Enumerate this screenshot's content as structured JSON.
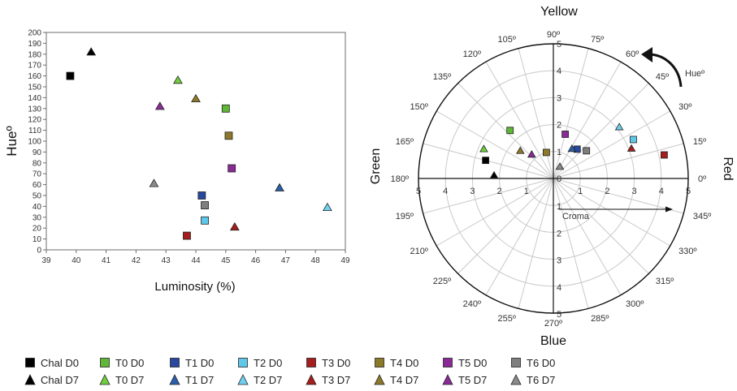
{
  "figure": {
    "scatter": {
      "type": "scatter",
      "xlabel": "Luminosity (%)",
      "ylabel": "Hueº",
      "xlim": [
        39,
        49
      ],
      "ylim": [
        0,
        200
      ],
      "x_ticks": [
        39,
        40,
        41,
        42,
        43,
        44,
        45,
        46,
        47,
        48,
        49
      ],
      "y_ticks": [
        0,
        10,
        20,
        30,
        40,
        50,
        60,
        70,
        80,
        90,
        100,
        110,
        120,
        130,
        140,
        150,
        160,
        170,
        180,
        190,
        200
      ]
    },
    "polar": {
      "type": "polar-scatter",
      "radius_max": 5,
      "radial_ticks": [
        1,
        2,
        3,
        4,
        5
      ],
      "angle_ticks": [
        "0º",
        "15º",
        "30º",
        "45º",
        "60º",
        "75º",
        "90º",
        "105º",
        "120º",
        "135º",
        "150º",
        "165º",
        "180º",
        "195º",
        "210º",
        "225º",
        "240º",
        "255º",
        "270º",
        "285º",
        "300º",
        "315º",
        "330º",
        "345º"
      ],
      "radial_label": "Croma",
      "rotation_label": "Hueº",
      "directions": {
        "top": "Yellow",
        "bottom": "Blue",
        "left": "Green",
        "right": "Red"
      }
    }
  },
  "chart_data": [
    {
      "type": "scatter",
      "title": "",
      "xlabel": "Luminosity (%)",
      "ylabel": "Hueº",
      "xlim": [
        39,
        49
      ],
      "ylim": [
        0,
        200
      ],
      "series": [
        {
          "name": "Chal D0",
          "marker": "square",
          "color": "#000000",
          "points": [
            {
              "x": 39.8,
              "y": 160
            }
          ]
        },
        {
          "name": "Chal D7",
          "marker": "triangle",
          "color": "#000000",
          "points": [
            {
              "x": 40.5,
              "y": 182
            }
          ]
        },
        {
          "name": "T0 D0",
          "marker": "square",
          "color": "#5fb637",
          "points": [
            {
              "x": 45.0,
              "y": 130
            }
          ]
        },
        {
          "name": "T0 D7",
          "marker": "triangle",
          "color": "#6fcf3d",
          "points": [
            {
              "x": 43.4,
              "y": 156
            }
          ]
        },
        {
          "name": "T1 D0",
          "marker": "square",
          "color": "#27489d",
          "points": [
            {
              "x": 44.2,
              "y": 50
            }
          ]
        },
        {
          "name": "T1 D7",
          "marker": "triangle",
          "color": "#2b5ea8",
          "points": [
            {
              "x": 46.8,
              "y": 57
            }
          ]
        },
        {
          "name": "T2 D0",
          "marker": "square",
          "color": "#5fc8ea",
          "points": [
            {
              "x": 44.3,
              "y": 27
            }
          ]
        },
        {
          "name": "T2 D7",
          "marker": "triangle",
          "color": "#6fd1ef",
          "points": [
            {
              "x": 48.4,
              "y": 39
            }
          ]
        },
        {
          "name": "T3 D0",
          "marker": "square",
          "color": "#a51d1d",
          "points": [
            {
              "x": 43.7,
              "y": 13
            }
          ]
        },
        {
          "name": "T3 D7",
          "marker": "triangle",
          "color": "#a51d1d",
          "points": [
            {
              "x": 45.3,
              "y": 21
            }
          ]
        },
        {
          "name": "T4 D0",
          "marker": "square",
          "color": "#8c7a2a",
          "points": [
            {
              "x": 45.1,
              "y": 105
            }
          ]
        },
        {
          "name": "T4 D7",
          "marker": "triangle",
          "color": "#8c7a2a",
          "points": [
            {
              "x": 44.0,
              "y": 139
            }
          ]
        },
        {
          "name": "T5 D0",
          "marker": "square",
          "color": "#8a2a96",
          "points": [
            {
              "x": 45.2,
              "y": 75
            }
          ]
        },
        {
          "name": "T5 D7",
          "marker": "triangle",
          "color": "#8a2a96",
          "points": [
            {
              "x": 42.8,
              "y": 132
            }
          ]
        },
        {
          "name": "T6 D0",
          "marker": "square",
          "color": "#7f7f7f",
          "points": [
            {
              "x": 44.3,
              "y": 41
            }
          ]
        },
        {
          "name": "T6 D7",
          "marker": "triangle",
          "color": "#8a8a8a",
          "points": [
            {
              "x": 42.6,
              "y": 61
            }
          ]
        }
      ]
    },
    {
      "type": "polar-scatter",
      "title": "",
      "radial_label": "Croma",
      "angle_label": "Hueº",
      "radius_range": [
        0,
        5
      ],
      "series": [
        {
          "name": "Chal D0",
          "marker": "square",
          "color": "#000000",
          "points": [
            {
              "hue": 165,
              "chroma": 2.6
            }
          ]
        },
        {
          "name": "Chal D7",
          "marker": "triangle",
          "color": "#000000",
          "points": [
            {
              "hue": 177,
              "chroma": 2.2
            }
          ]
        },
        {
          "name": "T0 D0",
          "marker": "square",
          "color": "#5fb637",
          "points": [
            {
              "hue": 132,
              "chroma": 2.4
            }
          ]
        },
        {
          "name": "T0 D7",
          "marker": "triangle",
          "color": "#6fcf3d",
          "points": [
            {
              "hue": 157,
              "chroma": 2.8
            }
          ]
        },
        {
          "name": "T1 D0",
          "marker": "square",
          "color": "#27489d",
          "points": [
            {
              "hue": 51,
              "chroma": 1.4
            }
          ]
        },
        {
          "name": "T1 D7",
          "marker": "triangle",
          "color": "#2b5ea8",
          "points": [
            {
              "hue": 58,
              "chroma": 1.3
            }
          ]
        },
        {
          "name": "T2 D0",
          "marker": "square",
          "color": "#5fc8ea",
          "points": [
            {
              "hue": 26,
              "chroma": 3.3
            }
          ]
        },
        {
          "name": "T2 D7",
          "marker": "triangle",
          "color": "#6fd1ef",
          "points": [
            {
              "hue": 38,
              "chroma": 3.1
            }
          ]
        },
        {
          "name": "T3 D0",
          "marker": "square",
          "color": "#a51d1d",
          "points": [
            {
              "hue": 12,
              "chroma": 4.2
            }
          ]
        },
        {
          "name": "T3 D7",
          "marker": "triangle",
          "color": "#a51d1d",
          "points": [
            {
              "hue": 21,
              "chroma": 3.1
            }
          ]
        },
        {
          "name": "T4 D0",
          "marker": "square",
          "color": "#8c7a2a",
          "points": [
            {
              "hue": 105,
              "chroma": 1.0
            }
          ]
        },
        {
          "name": "T4 D7",
          "marker": "triangle",
          "color": "#8c7a2a",
          "points": [
            {
              "hue": 140,
              "chroma": 1.6
            }
          ]
        },
        {
          "name": "T5 D0",
          "marker": "square",
          "color": "#8a2a96",
          "points": [
            {
              "hue": 75,
              "chroma": 1.7
            }
          ]
        },
        {
          "name": "T5 D7",
          "marker": "triangle",
          "color": "#8a2a96",
          "points": [
            {
              "hue": 132,
              "chroma": 1.2
            }
          ]
        },
        {
          "name": "T6 D0",
          "marker": "square",
          "color": "#7f7f7f",
          "points": [
            {
              "hue": 40,
              "chroma": 1.6
            }
          ]
        },
        {
          "name": "T6 D7",
          "marker": "triangle",
          "color": "#8a8a8a",
          "points": [
            {
              "hue": 61,
              "chroma": 0.5
            }
          ]
        }
      ]
    }
  ],
  "legend": {
    "items": [
      {
        "label": "Chal D0",
        "marker": "square",
        "color": "#000000"
      },
      {
        "label": "Chal D7",
        "marker": "triangle",
        "color": "#000000"
      },
      {
        "label": "T0 D0",
        "marker": "square",
        "color": "#5fb637"
      },
      {
        "label": "T0 D7",
        "marker": "triangle",
        "color": "#6fcf3d"
      },
      {
        "label": "T1 D0",
        "marker": "square",
        "color": "#27489d"
      },
      {
        "label": "T1 D7",
        "marker": "triangle",
        "color": "#2b5ea8"
      },
      {
        "label": "T2 D0",
        "marker": "square",
        "color": "#5fc8ea"
      },
      {
        "label": "T2 D7",
        "marker": "triangle",
        "color": "#6fd1ef"
      },
      {
        "label": "T3 D0",
        "marker": "square",
        "color": "#a51d1d"
      },
      {
        "label": "T3 D7",
        "marker": "triangle",
        "color": "#a51d1d"
      },
      {
        "label": "T4 D0",
        "marker": "square",
        "color": "#8c7a2a"
      },
      {
        "label": "T4 D7",
        "marker": "triangle",
        "color": "#8c7a2a"
      },
      {
        "label": "T5 D0",
        "marker": "square",
        "color": "#8a2a96"
      },
      {
        "label": "T5 D7",
        "marker": "triangle",
        "color": "#8a2a96"
      },
      {
        "label": "T6 D0",
        "marker": "square",
        "color": "#7f7f7f"
      },
      {
        "label": "T6 D7",
        "marker": "triangle",
        "color": "#8a8a8a"
      }
    ]
  }
}
